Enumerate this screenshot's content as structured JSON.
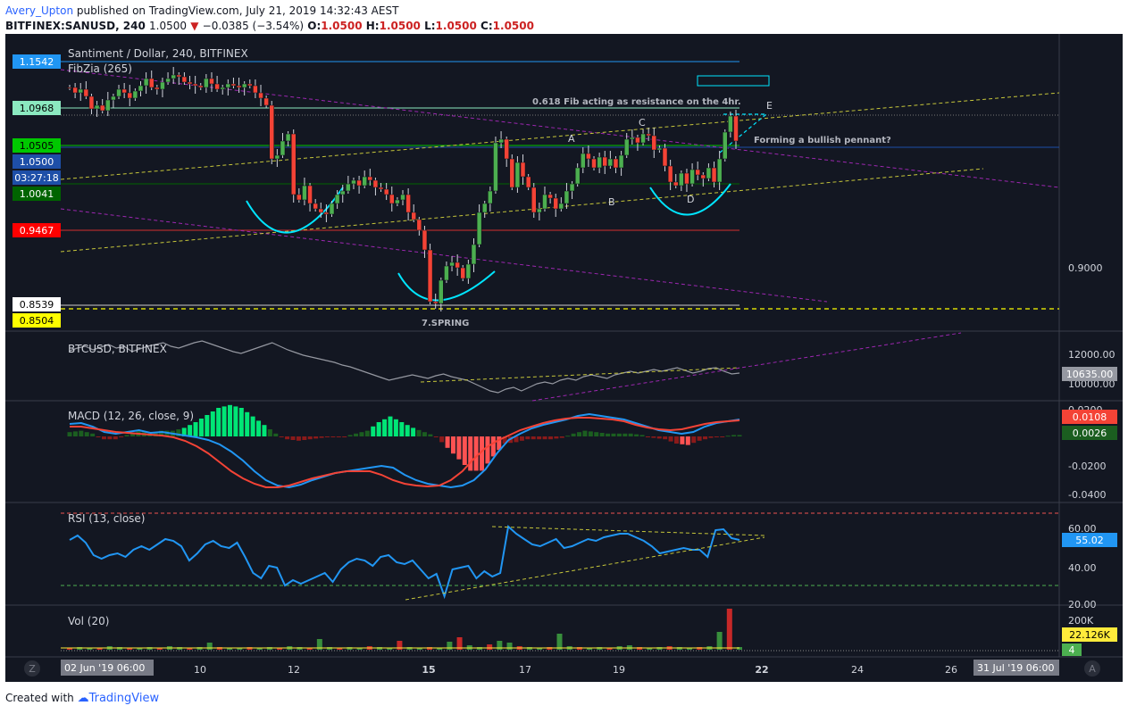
{
  "header": {
    "author": "Avery_Upton",
    "published": "published on TradingView.com, July 21, 2019 14:32:43 AEST",
    "symbol": "BITFINEX:SANUSD, 240",
    "last": "1.0500",
    "change": "−0.0385 (−3.54%)",
    "ohlc": {
      "o_label": "O:",
      "o": "1.0500",
      "h_label": "H:",
      "h": "1.0500",
      "l_label": "L:",
      "l": "1.0500",
      "c_label": "C:",
      "c": "1.0500"
    }
  },
  "main": {
    "title": "Santiment / Dollar, 240, BITFINEX",
    "indicator": "FibZia (265)",
    "annotations": {
      "fib_note": "0.618 Fib acting as resistance on the 4hr.",
      "pennant_note": "Forming a bullish pennant?",
      "spring": "7.SPRING",
      "points": [
        "A",
        "B",
        "C",
        "D",
        "E"
      ]
    },
    "price_axis": {
      "plain_ticks": [
        "0.9000"
      ],
      "badges": [
        {
          "label": "1.1542",
          "color": "#2196f3"
        },
        {
          "label": "1.0968",
          "color": "#8be9c0"
        },
        {
          "label": "1.0505",
          "color": "#00c800"
        },
        {
          "label": "1.0500",
          "color": "#1e4fa8"
        },
        {
          "label": "03:27:18",
          "color": "#1e4fa8"
        },
        {
          "label": "1.0041",
          "color": "#006400"
        },
        {
          "label": "0.9467",
          "color": "#ff0000"
        },
        {
          "label": "0.8539",
          "color": "#ffffff"
        },
        {
          "label": "0.8504",
          "color": "#ffff00"
        }
      ]
    }
  },
  "btc_pane": {
    "title": "BTCUSD, BITFINEX",
    "ticks": [
      "12000.00",
      "10000.00"
    ],
    "badge": "10635.00"
  },
  "macd_pane": {
    "title": "MACD (12, 26, close, 9)",
    "ticks": [
      "0.0200",
      "-0.0200",
      "-0.0400"
    ],
    "badges": [
      {
        "label": "0.0108",
        "color": "#f44336"
      },
      {
        "label": "0.0026",
        "color": "#1b5e20"
      }
    ]
  },
  "rsi_pane": {
    "title": "RSI (13, close)",
    "ticks": [
      "60.00",
      "40.00",
      "20.00"
    ],
    "badge": "55.02"
  },
  "vol_pane": {
    "title": "Vol (20)",
    "ticks": [
      "200K"
    ],
    "badges": [
      {
        "label": "22.126K",
        "color": "#ffeb3b"
      },
      {
        "label": "4",
        "color": "#4caf50"
      }
    ]
  },
  "time_axis": {
    "start_label": "02 Jun '19   06:00",
    "labels": [
      "10",
      "12",
      "15",
      "17",
      "19",
      "22",
      "24",
      "26"
    ],
    "end_label": "31 Jul '19   06:00",
    "left_button": "Z",
    "right_button": "A"
  },
  "footer": {
    "created": "Created with",
    "brand": "TradingView"
  },
  "colors": {
    "background": "#131722",
    "up": "#4caf50",
    "down": "#f44336",
    "arc": "#00e5ff",
    "trend": "#c6c63a",
    "channel": "#9c27b0"
  }
}
